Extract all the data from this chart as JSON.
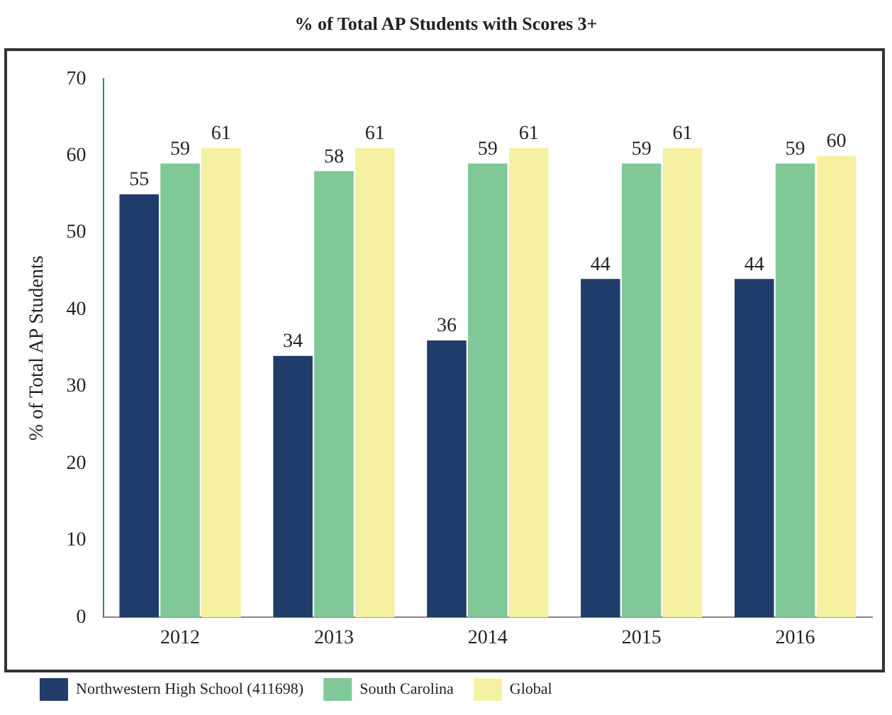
{
  "chart_data": {
    "type": "bar",
    "title": "% of Total AP Students with Scores 3+",
    "ylabel": "% of Total AP Students",
    "categories": [
      "2012",
      "2013",
      "2014",
      "2015",
      "2016"
    ],
    "series": [
      {
        "name": "Northwestern High School (411698)",
        "color": "#203c6a",
        "values": [
          55,
          34,
          36,
          44,
          44
        ]
      },
      {
        "name": "South Carolina",
        "color": "#80c898",
        "values": [
          59,
          58,
          59,
          59,
          59
        ]
      },
      {
        "name": "Global",
        "color": "#f6f0a2",
        "values": [
          61,
          61,
          61,
          61,
          60
        ]
      }
    ],
    "ylim": [
      0,
      70
    ],
    "yticks": [
      0,
      10,
      20,
      30,
      40,
      50,
      60,
      70
    ],
    "grid": false,
    "legend": "bottom left",
    "data_labels": true
  }
}
